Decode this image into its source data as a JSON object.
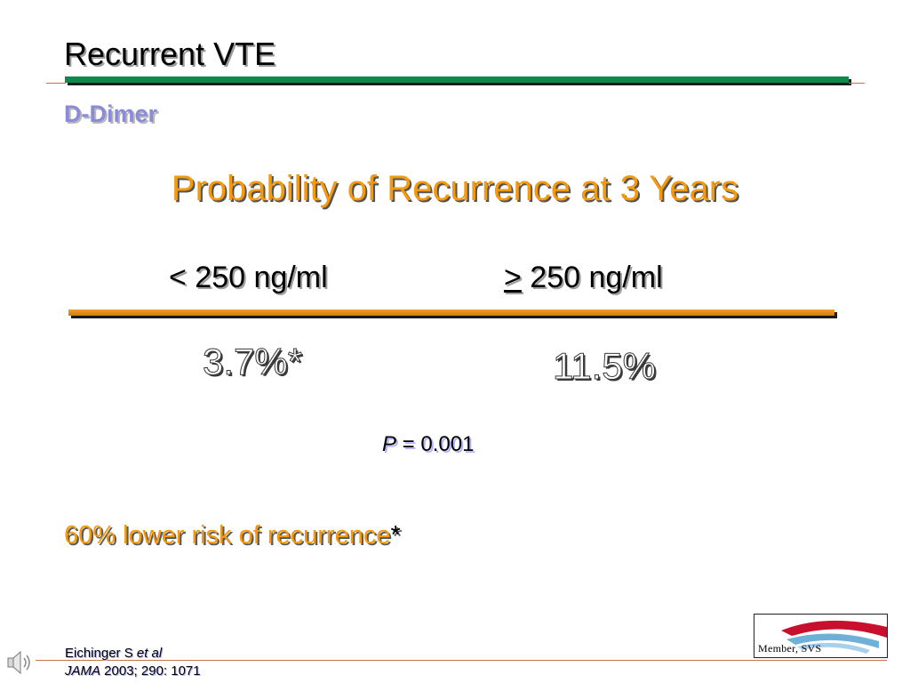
{
  "slide": {
    "title": "Recurrent VTE",
    "subtitle": "D-Dimer",
    "heading": "Probability of Recurrence at 3 Years",
    "columns": [
      {
        "prefix": "<",
        "label": " 250 ng/ml",
        "value": "3.7%*"
      },
      {
        "prefix": ">",
        "label": " 250 ng/ml",
        "value": "11.5%"
      }
    ],
    "p_value": {
      "symbol": "P",
      "text": " = 0.001"
    },
    "note": {
      "text": "60% lower risk of recurrence",
      "marker": "*"
    },
    "citation": {
      "line1_plain": "Eichinger S ",
      "line1_italic": "et al",
      "line2_italic": "JAMA",
      "line2_plain": " 2003; 290: 1071"
    },
    "logo": {
      "text": "Member, SVS"
    }
  },
  "icons": {
    "speaker": "speaker-icon"
  },
  "colors": {
    "title_accent_bar": "#0b8a4c",
    "table_rule": "#e38b15",
    "heading_orange": "#f39a10",
    "subtitle_lavender": "#8b8bd6"
  }
}
